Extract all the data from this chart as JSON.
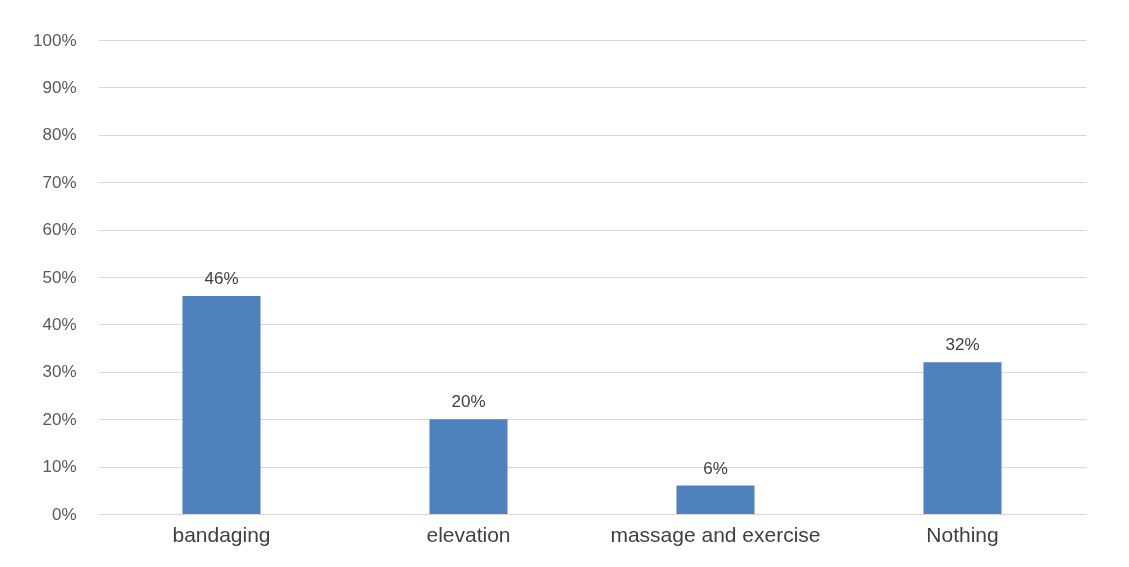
{
  "chart_data": {
    "type": "bar",
    "categories": [
      "bandaging",
      "elevation",
      "massage and exercise",
      "Nothing"
    ],
    "values": [
      46,
      20,
      6,
      32
    ],
    "value_labels": [
      "46%",
      "20%",
      "6%",
      "32%"
    ],
    "color": "#4f81bd",
    "ylim": [
      0,
      100
    ],
    "yticks": [
      {
        "value": 0,
        "label": "0%"
      },
      {
        "value": 10,
        "label": "10%"
      },
      {
        "value": 20,
        "label": "20%"
      },
      {
        "value": 30,
        "label": "30%"
      },
      {
        "value": 40,
        "label": "40%"
      },
      {
        "value": 50,
        "label": "50%"
      },
      {
        "value": 60,
        "label": "60%"
      },
      {
        "value": 70,
        "label": "70%"
      },
      {
        "value": 80,
        "label": "80%"
      },
      {
        "value": 90,
        "label": "90%"
      },
      {
        "value": 100,
        "label": "100%"
      }
    ],
    "grid": "y"
  }
}
